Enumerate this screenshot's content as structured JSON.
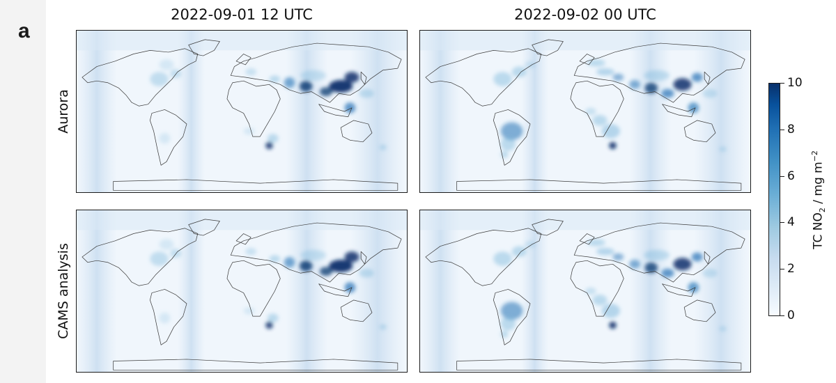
{
  "figure": {
    "panel_label": "a",
    "columns": [
      "2022-09-01 12 UTC",
      "2022-09-02 00 UTC"
    ],
    "rows": [
      "Aurora",
      "CAMS analysis"
    ]
  },
  "colorbar": {
    "label_prefix": "TC NO",
    "label_sub": "2",
    "label_mid": " / mg m",
    "label_sup": "−2",
    "ticks": [
      "0",
      "2",
      "4",
      "6",
      "8",
      "10"
    ],
    "min": 0,
    "max": 10,
    "colormap": "Blues",
    "colors": [
      "#f7fbff",
      "#c6dbef",
      "#6baed6",
      "#2171b5",
      "#08306b"
    ]
  },
  "maps": [
    {
      "row": "Aurora",
      "column": "2022-09-01 12 UTC",
      "variant": "a"
    },
    {
      "row": "Aurora",
      "column": "2022-09-02 00 UTC",
      "variant": "b"
    },
    {
      "row": "CAMS analysis",
      "column": "2022-09-01 12 UTC",
      "variant": "a"
    },
    {
      "row": "CAMS analysis",
      "column": "2022-09-02 00 UTC",
      "variant": "b"
    }
  ]
}
